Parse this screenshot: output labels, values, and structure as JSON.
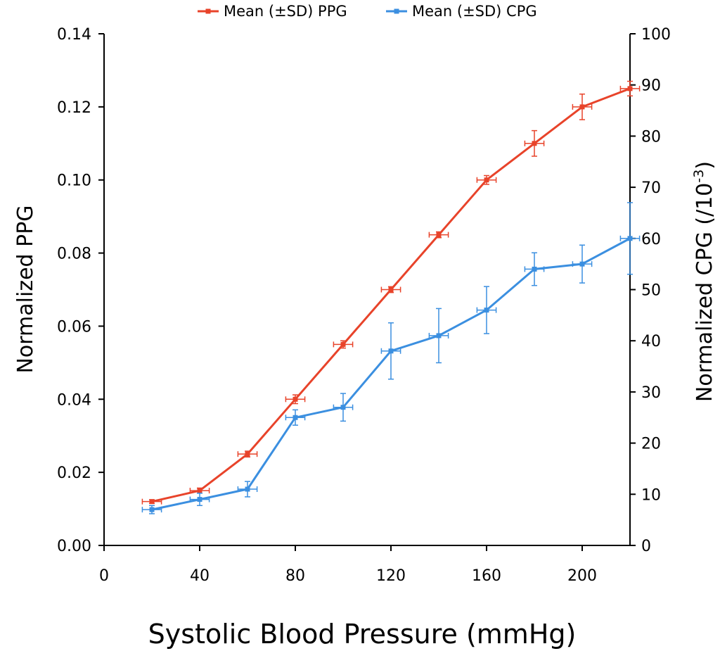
{
  "chart_data": {
    "type": "line",
    "title": "",
    "xlabel": "Systolic Blood Pressure (mmHg)",
    "ylabel_left": "Normalized PPG",
    "ylabel_right_main": "Normalized CPG (/10",
    "ylabel_right_sup": "-3",
    "ylabel_right_close": ")",
    "xlim": [
      0,
      220
    ],
    "ylim_left": [
      0,
      0.14
    ],
    "ylim_right": [
      0,
      100
    ],
    "x_ticks": [
      "0",
      "40",
      "80",
      "120",
      "160",
      "200"
    ],
    "y_left_ticks": [
      "0.00",
      "0.02",
      "0.04",
      "0.06",
      "0.08",
      "0.10",
      "0.12",
      "0.14"
    ],
    "y_right_ticks": [
      "0",
      "10",
      "20",
      "30",
      "40",
      "50",
      "60",
      "70",
      "80",
      "90",
      "100"
    ],
    "legend_position": "top",
    "x": [
      20,
      40,
      60,
      80,
      100,
      120,
      140,
      160,
      180,
      200,
      220
    ],
    "series": [
      {
        "name": "Mean (±SD) PPG",
        "color": "#e8432a",
        "axis": "left",
        "values": [
          0.012,
          0.015,
          0.025,
          0.04,
          0.055,
          0.07,
          0.085,
          0.1,
          0.11,
          0.12,
          0.125
        ],
        "y_err": [
          0.0005,
          0.0007,
          0.0008,
          0.0012,
          0.001,
          0.0008,
          0.0008,
          0.0012,
          0.0035,
          0.0035,
          0.002
        ],
        "x_err": [
          4,
          4,
          4,
          4,
          4,
          4,
          4,
          4,
          4,
          4,
          4
        ]
      },
      {
        "name": "Mean (±SD) CPG",
        "color": "#3b8fe0",
        "axis": "right",
        "values": [
          7,
          9,
          11,
          25,
          27,
          38,
          41,
          46,
          54,
          55,
          60
        ],
        "y_err": [
          0.8,
          1.2,
          1.5,
          1.5,
          2.7,
          5.5,
          5.3,
          4.6,
          3.2,
          3.7,
          7.0
        ],
        "x_err": [
          4,
          4,
          4,
          4,
          4,
          4,
          4,
          4,
          4,
          4,
          4
        ]
      }
    ]
  }
}
